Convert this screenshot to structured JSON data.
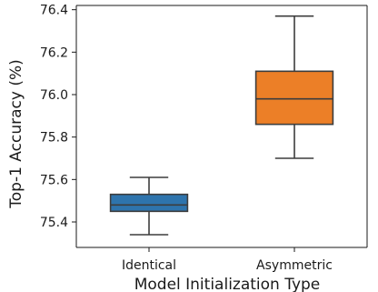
{
  "chart_data": {
    "type": "box",
    "title": "",
    "xlabel": "Model Initialization Type",
    "ylabel": "Top-1 Accuracy (%)",
    "ylim": [
      75.28,
      76.42
    ],
    "yticks": [
      75.4,
      75.6,
      75.8,
      76.0,
      76.2,
      76.4
    ],
    "ytick_labels": [
      "75.4",
      "75.6",
      "75.8",
      "76.0",
      "76.2",
      "76.4"
    ],
    "categories": [
      "Identical",
      "Asymmetric"
    ],
    "grid": false,
    "legend": "none",
    "boxes": [
      {
        "category": "Identical",
        "color": "#2e74ad",
        "whisker_low": 75.34,
        "q1": 75.45,
        "median": 75.48,
        "q3": 75.53,
        "whisker_high": 75.61
      },
      {
        "category": "Asymmetric",
        "color": "#ec7f27",
        "whisker_low": 75.7,
        "q1": 75.86,
        "median": 75.98,
        "q3": 76.11,
        "whisker_high": 76.37
      }
    ]
  }
}
